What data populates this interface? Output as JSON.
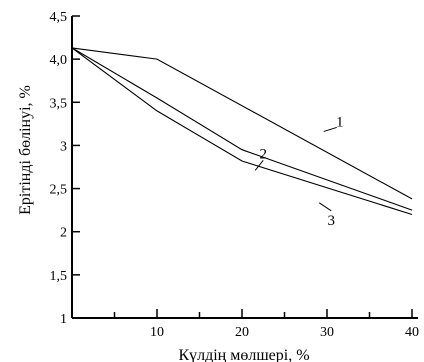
{
  "chart_data": {
    "type": "line",
    "title": "",
    "xlabel": "Күлдің мөлшері, %",
    "ylabel": "Ерітінді бөлінуі, %",
    "xlim": [
      0,
      40
    ],
    "ylim": [
      1,
      4.5
    ],
    "x_ticks": [
      10,
      20,
      30,
      40
    ],
    "x_tick_labels": [
      "10",
      "20",
      "30",
      "40"
    ],
    "x_minor_ticks": [
      5,
      15,
      25,
      35
    ],
    "y_ticks": [
      1,
      1.5,
      2,
      2.5,
      3,
      3.5,
      4,
      4.5
    ],
    "y_tick_labels": [
      "1",
      "1,5",
      "2",
      "2,5",
      "3",
      "3,5",
      "4,0",
      "4,5"
    ],
    "grid": false,
    "series": [
      {
        "label": "1",
        "x": [
          0,
          10,
          40
        ],
        "y": [
          4.13,
          4.0,
          2.38
        ]
      },
      {
        "label": "2",
        "x": [
          0,
          10,
          20,
          40
        ],
        "y": [
          4.13,
          3.55,
          2.95,
          2.25
        ]
      },
      {
        "label": "3",
        "x": [
          0,
          10,
          20,
          40
        ],
        "y": [
          4.13,
          3.4,
          2.82,
          2.2
        ]
      }
    ],
    "curve_labels": [
      {
        "text": "1",
        "x": 31.5,
        "y": 3.22
      },
      {
        "text": "2",
        "x": 22.5,
        "y": 2.85
      },
      {
        "text": "3",
        "x": 30.5,
        "y": 2.08
      }
    ]
  }
}
